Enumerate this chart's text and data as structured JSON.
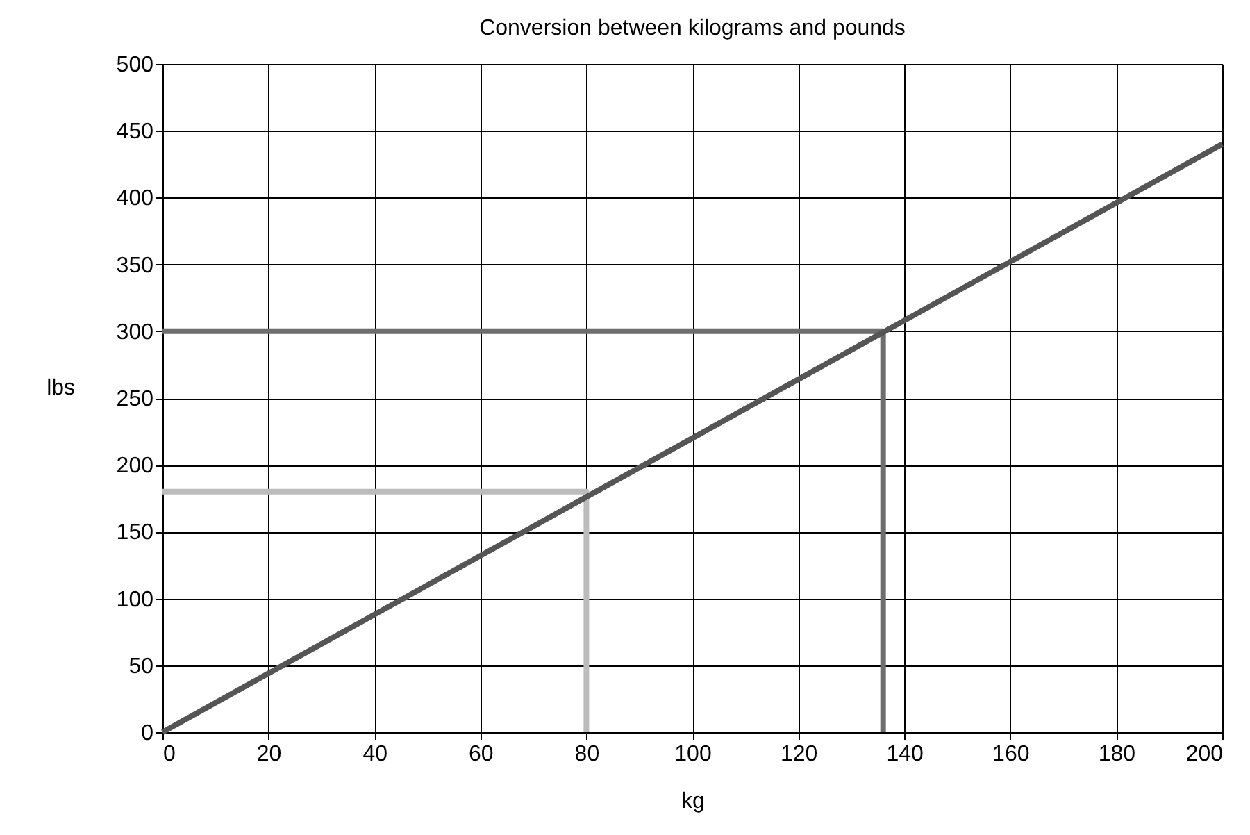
{
  "chart_data": {
    "type": "line",
    "title": "Conversion between kilograms and pounds",
    "xlabel": "kg",
    "ylabel": "lbs",
    "xlim": [
      0,
      200
    ],
    "xticks": [
      0,
      20,
      40,
      60,
      80,
      100,
      120,
      140,
      160,
      180,
      200
    ],
    "ylim": [
      0,
      500
    ],
    "yticks": [
      0,
      50,
      100,
      150,
      200,
      250,
      300,
      350,
      400,
      450,
      500
    ],
    "grid": true,
    "marker": "none",
    "line_style": "solid",
    "series": [
      {
        "color": "#6e6e6e",
        "x": [
          0,
          136,
          136
        ],
        "values": [
          300,
          300,
          0
        ]
      },
      {
        "color": "#bcbcbc",
        "x": [
          0,
          80,
          80
        ],
        "values": [
          180,
          180,
          0
        ]
      },
      {
        "color": "#555555",
        "x": [
          0,
          200
        ],
        "values": [
          0,
          440
        ]
      }
    ]
  }
}
